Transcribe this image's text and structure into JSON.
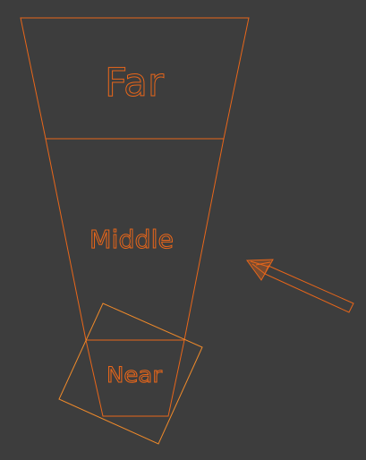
{
  "labels": {
    "far": "Far",
    "middle": "Middle",
    "near": "Near"
  },
  "colors": {
    "background": "#3d3d3d",
    "accent": "#e8661a",
    "accent_light": "#f08a2a"
  },
  "icons": {
    "direction_arrow": "arrow-icon"
  }
}
